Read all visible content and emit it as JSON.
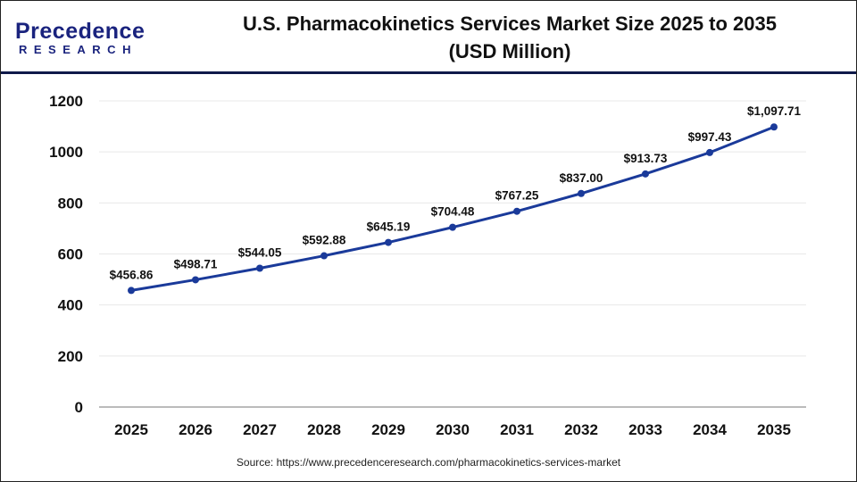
{
  "header": {
    "logo_line1": "Precedence",
    "logo_line2": "RESEARCH",
    "title_line1": "U.S. Pharmacokinetics Services Market Size 2025 to 2035",
    "title_line2": "(USD Million)"
  },
  "source": "Source: https://www.precedenceresearch.com/pharmacokinetics-services-market",
  "chart_data": {
    "type": "line",
    "title": "U.S. Pharmacokinetics Services Market Size 2025 to 2035 (USD Million)",
    "categories": [
      "2025",
      "2026",
      "2027",
      "2028",
      "2029",
      "2030",
      "2031",
      "2032",
      "2033",
      "2034",
      "2035"
    ],
    "values": [
      456.86,
      498.71,
      544.05,
      592.88,
      645.19,
      704.48,
      767.25,
      837.0,
      913.73,
      997.43,
      1097.71
    ],
    "data_labels": [
      "$456.86",
      "$498.71",
      "$544.05",
      "$592.88",
      "$645.19",
      "$704.48",
      "$767.25",
      "$837.00",
      "$913.73",
      "$997.43",
      "$1,097.71"
    ],
    "ylim": [
      0,
      1200
    ],
    "yticks": [
      "0",
      "200",
      "400",
      "600",
      "800",
      "1000",
      "1200"
    ],
    "grid": true,
    "line_color": "#1a3a9a"
  }
}
